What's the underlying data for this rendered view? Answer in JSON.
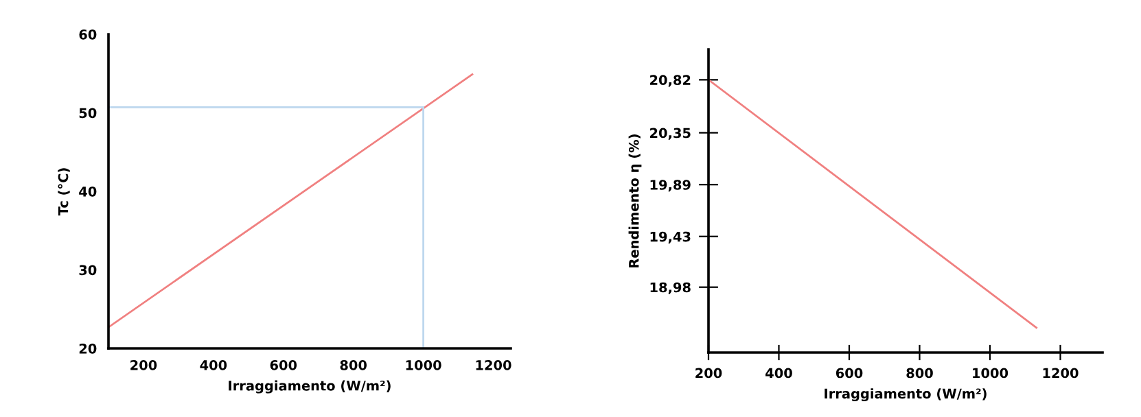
{
  "chart_data": [
    {
      "type": "line",
      "xlabel": "Irraggiamento (W/m²)",
      "ylabel": "Tc (°C)",
      "x": [
        100,
        1140
      ],
      "series": [
        {
          "color": "#f08080",
          "values": [
            22.7,
            54.9
          ]
        }
      ],
      "xlim": [
        100,
        1250
      ],
      "ylim": [
        20,
        60
      ],
      "xticks": [
        200,
        400,
        600,
        800,
        1000,
        1200
      ],
      "yticks": [
        20,
        30,
        40,
        50,
        60
      ],
      "ref_lines": [
        {
          "axis": "x",
          "value": 1000,
          "color": "#bdd7ee"
        },
        {
          "axis": "y",
          "value": 50.7,
          "color": "#bdd7ee"
        }
      ],
      "grid": false,
      "legend": false
    },
    {
      "type": "line",
      "xlabel": "Irraggiamento (W/m²)",
      "ylabel": "Rendimento η (%)",
      "x": [
        200,
        1132
      ],
      "series": [
        {
          "color": "#f08080",
          "values": [
            20.82,
            18.62
          ]
        }
      ],
      "xlim": [
        200,
        1320
      ],
      "ylim": [
        18.4,
        21.09
      ],
      "xticks": [
        200,
        400,
        600,
        800,
        1000,
        1200
      ],
      "yticks": [
        {
          "value": 18.98,
          "label": "18,98"
        },
        {
          "value": 19.43,
          "label": "19,43"
        },
        {
          "value": 19.89,
          "label": "19,89"
        },
        {
          "value": 20.35,
          "label": "20,35"
        },
        {
          "value": 20.82,
          "label": "20,82"
        }
      ],
      "grid": false,
      "legend": false
    }
  ]
}
